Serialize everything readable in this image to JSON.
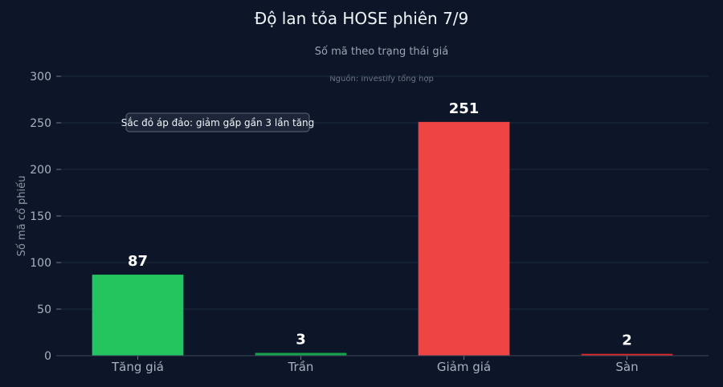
{
  "chart_data": {
    "type": "bar",
    "title": "Độ lan tỏa HOSE phiên 7/9",
    "subtitle": "Số mã theo trạng thái giá",
    "source": "Nguồn: Investify tổng hợp",
    "ylabel": "Số mã cổ phiếu",
    "xlabel": "",
    "categories": [
      "Tăng giá",
      "Trần",
      "Giảm giá",
      "Sàn"
    ],
    "values": [
      87,
      3,
      251,
      2
    ],
    "colors": [
      "#22c55e",
      "#16a34a",
      "#ef4444",
      "#dc2626"
    ],
    "ylim": [
      0,
      300
    ],
    "yticks": [
      0,
      50,
      100,
      150,
      200,
      250,
      300
    ],
    "grid": true,
    "annotation": "Sắc đỏ áp đảo: giảm gấp gần 3 lần tăng"
  }
}
